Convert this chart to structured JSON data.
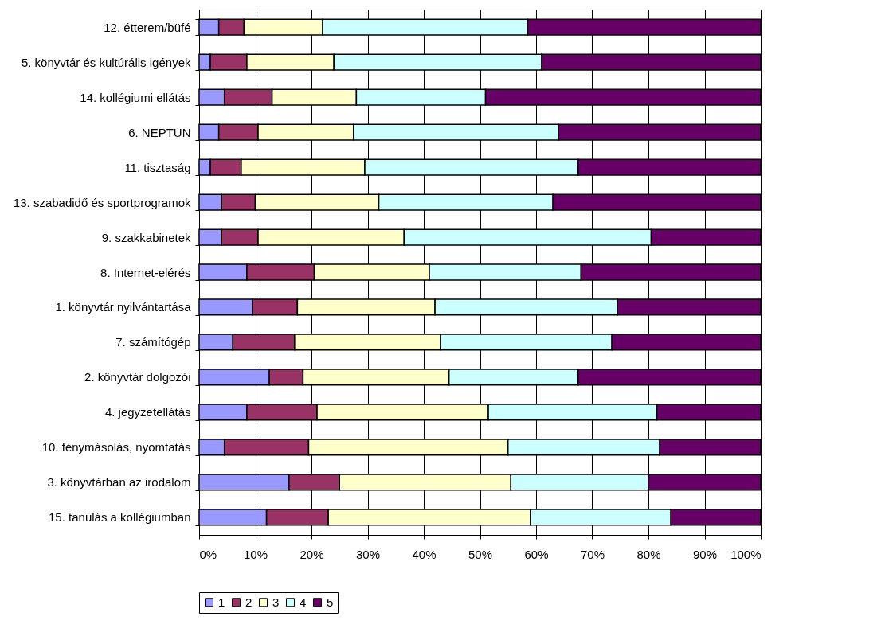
{
  "chart_data": {
    "type": "bar",
    "orientation": "horizontal",
    "stacked": true,
    "categories": [
      "12.  étterem/büfé",
      "5.      könyvtár és kultúrális igények",
      "14.  kollégiumi ellátás",
      "6.      NEPTUN",
      "11.  tisztaság",
      "13.  szabadidő és sportprogramok",
      "9.      szakkabinetek",
      "8.      Internet-elérés",
      "1.      könyvtár nyilvántartása",
      "7.      számítógép",
      "2.      könyvtár dolgozói",
      "4.      jegyzetellátás",
      "10.  fénymásolás, nyomtatás",
      "3.      könyvtárban az irodalom",
      "15. tanulás a kollégiumban"
    ],
    "series": [
      {
        "name": "1",
        "color": "#9999ff",
        "values": [
          3.5,
          2,
          4.5,
          3.5,
          2,
          4,
          4,
          8.5,
          9.5,
          6,
          12.5,
          8.5,
          4.5,
          16,
          12
        ]
      },
      {
        "name": "2",
        "color": "#993366",
        "values": [
          4.5,
          6.5,
          8.5,
          7,
          5.5,
          6,
          6.5,
          12,
          8,
          11,
          6,
          12.5,
          15,
          9,
          11
        ]
      },
      {
        "name": "3",
        "color": "#ffffcc",
        "values": [
          14,
          15.5,
          15,
          17,
          22,
          22,
          26,
          20.5,
          24.5,
          26,
          26,
          30.5,
          35.5,
          30.5,
          36
        ]
      },
      {
        "name": "4",
        "color": "#ccffff",
        "values": [
          36.5,
          37,
          23,
          36.5,
          38,
          31,
          44,
          27,
          32.5,
          30.5,
          23,
          30,
          27,
          24.5,
          25
        ]
      },
      {
        "name": "5",
        "color": "#660066",
        "values": [
          41.5,
          39,
          49,
          36,
          32.5,
          37,
          19.5,
          32,
          25.5,
          26.5,
          32.5,
          18.5,
          18,
          20,
          16
        ]
      }
    ],
    "xlim": [
      0,
      100
    ],
    "xticks": [
      {
        "value": 0,
        "label": "0%"
      },
      {
        "value": 10,
        "label": "10%"
      },
      {
        "value": 20,
        "label": "20%"
      },
      {
        "value": 30,
        "label": "30%"
      },
      {
        "value": 40,
        "label": "40%"
      },
      {
        "value": 50,
        "label": "50%"
      },
      {
        "value": 60,
        "label": "60%"
      },
      {
        "value": 70,
        "label": "70%"
      },
      {
        "value": 80,
        "label": "80%"
      },
      {
        "value": 90,
        "label": "90%"
      },
      {
        "value": 100,
        "label": "100%"
      }
    ],
    "grid": "x",
    "legend": "bottom"
  }
}
